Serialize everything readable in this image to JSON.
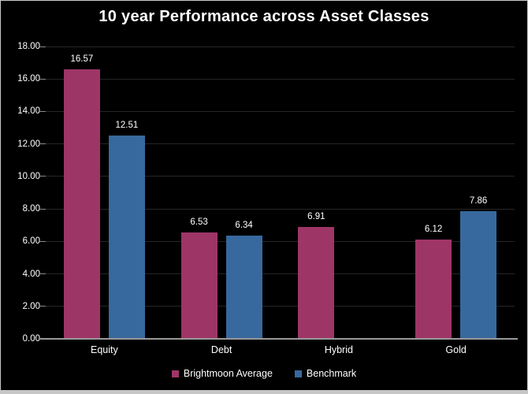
{
  "window": {
    "background": "#000000",
    "border_color": "#c9c9c9",
    "bottom_strip_color": "#c6c6c6"
  },
  "style": {
    "text_color": "#ffffff",
    "gridline_color": "#262626",
    "tick_color": "#8a8a8a",
    "axis_line_color": "#999999"
  },
  "chart_data": {
    "type": "bar",
    "title": "10 year Performance across Asset Classes",
    "categories": [
      "Equity",
      "Debt",
      "Hybrid",
      "Gold"
    ],
    "series": [
      {
        "name": "Brightmoon Average",
        "color": "#9E3567",
        "values": [
          16.57,
          6.53,
          6.91,
          6.12
        ]
      },
      {
        "name": "Benchmark",
        "color": "#37699E",
        "values": [
          12.51,
          6.34,
          null,
          7.86
        ]
      }
    ],
    "data_labels": [
      [
        "16.57",
        "6.53",
        "6.91",
        "6.12"
      ],
      [
        "12.51",
        "6.34",
        null,
        "7.86"
      ]
    ],
    "xlabel": "",
    "ylabel": "",
    "ylim": [
      0,
      18
    ],
    "y_tick_step": 2,
    "y_ticks": [
      "0.00",
      "2.00",
      "4.00",
      "6.00",
      "8.00",
      "10.00",
      "12.00",
      "14.00",
      "16.00",
      "18.00"
    ],
    "grid": true,
    "legend_position": "bottom"
  }
}
